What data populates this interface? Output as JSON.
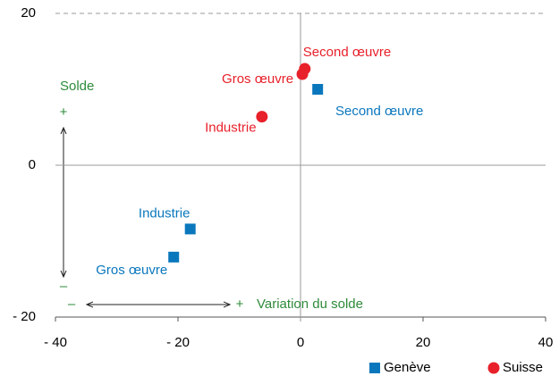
{
  "chart_data": {
    "type": "scatter",
    "xlim": [
      -40,
      40
    ],
    "xticks": [
      {
        "value": -40,
        "label": "- 40"
      },
      {
        "value": -20,
        "label": "- 20"
      },
      0,
      20,
      40
    ],
    "ylim": [
      -20,
      20
    ],
    "yticks": [
      {
        "value": -20,
        "label": "- 20"
      },
      0,
      20
    ],
    "grid": true,
    "legend": "bottom-right",
    "series": [
      {
        "name": "Genève",
        "color": "#0a77bd",
        "marker": "square",
        "x": [
          -18,
          -20.7,
          2.8
        ],
        "values": [
          -8.4,
          -12.1,
          10.0
        ],
        "point_labels": [
          "Industrie",
          "Gros œuvre",
          "Second œuvre"
        ]
      },
      {
        "name": "Suisse",
        "color": "#e8202a",
        "marker": "circle",
        "x": [
          -6.3,
          0.3,
          0.7
        ],
        "values": [
          6.4,
          12.0,
          12.7
        ],
        "point_labels": [
          "Industrie",
          "Gros œuvre",
          "Second œuvre"
        ]
      }
    ],
    "annotations": [
      "Solde",
      "+",
      "–",
      "–",
      "+",
      "Variation du solde"
    ]
  }
}
